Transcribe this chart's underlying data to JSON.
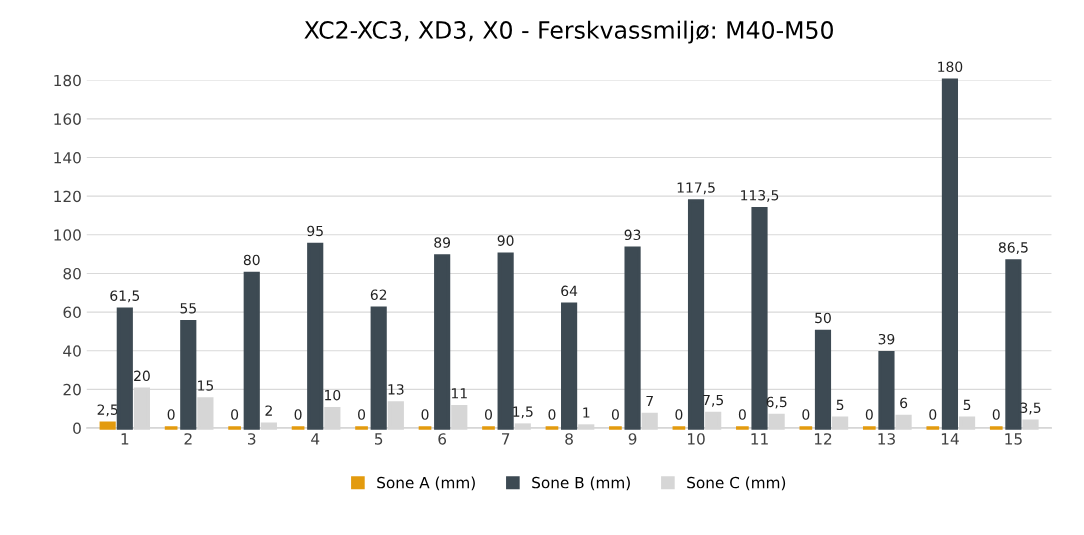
{
  "chart_data": {
    "type": "bar",
    "title": "XC2-XC3, XD3, X0 - Ferskvassmiljø: M40-M50",
    "categories": [
      "1",
      "2",
      "3",
      "4",
      "5",
      "6",
      "7",
      "8",
      "9",
      "10",
      "11",
      "12",
      "13",
      "14",
      "15"
    ],
    "series": [
      {
        "name": "Sone A (mm)",
        "color": "#e39b0e",
        "values": [
          2.5,
          0,
          0,
          0,
          0,
          0,
          0,
          0,
          0,
          0,
          0,
          0,
          0,
          0,
          0
        ],
        "value_labels": [
          "2,5",
          "0",
          "0",
          "0",
          "0",
          "0",
          "0",
          "0",
          "0",
          "0",
          "0",
          "0",
          "0",
          "0",
          "0"
        ]
      },
      {
        "name": "Sone B (mm)",
        "color": "#3d4a53",
        "values": [
          61.5,
          55,
          80,
          95,
          62,
          89,
          90,
          64,
          93,
          117.5,
          113.5,
          50,
          39,
          180,
          86.5
        ],
        "value_labels": [
          "61,5",
          "55",
          "80",
          "95",
          "62",
          "89",
          "90",
          "64",
          "93",
          "117,5",
          "113,5",
          "50",
          "39",
          "180",
          "86,5"
        ]
      },
      {
        "name": "Sone C (mm)",
        "color": "#d6d6d6",
        "values": [
          20,
          15,
          2,
          10,
          13,
          11,
          1.5,
          1,
          7,
          7.5,
          6.5,
          5,
          6,
          5,
          3.5
        ],
        "value_labels": [
          "20",
          "15",
          "2",
          "10",
          "13",
          "11",
          "1,5",
          "1",
          "7",
          "7,5",
          "6,5",
          "5",
          "6",
          "5",
          "3,5"
        ]
      }
    ],
    "ylim": [
      0,
      180
    ],
    "yticks": [
      0,
      20,
      40,
      60,
      80,
      100,
      120,
      140,
      160,
      180
    ],
    "grid": "y",
    "legend": "bottom"
  }
}
